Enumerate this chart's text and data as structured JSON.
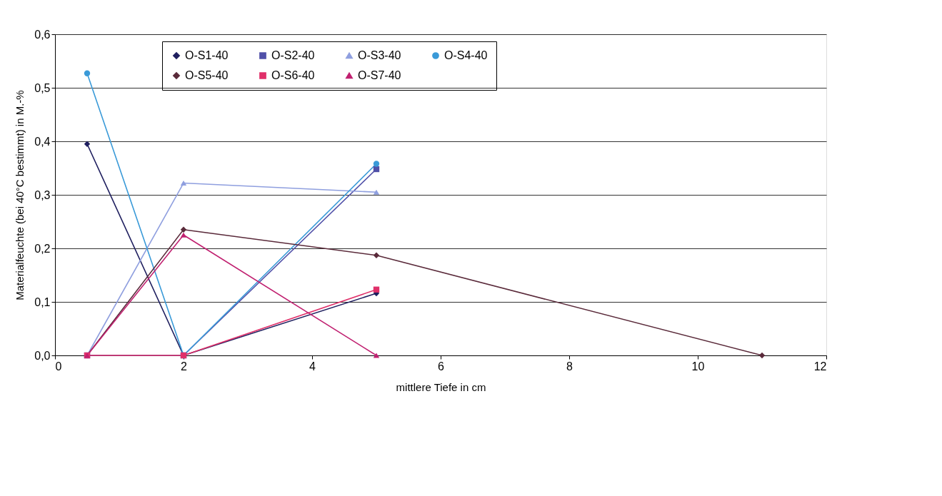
{
  "chart_data": {
    "type": "line",
    "xlabel": "mittlere Tiefe in cm",
    "ylabel": "Materialfeuchte (bei 40°C bestimmt) in M.-%",
    "xlim": [
      0,
      12
    ],
    "xticks": [
      0,
      2,
      4,
      6,
      8,
      10,
      12
    ],
    "ylim": [
      0,
      0.6
    ],
    "yticks": [
      {
        "value": 0,
        "label": "0,0"
      },
      {
        "value": 0.1,
        "label": "0,1"
      },
      {
        "value": 0.2,
        "label": "0,2"
      },
      {
        "value": 0.3,
        "label": "0,3"
      },
      {
        "value": 0.4,
        "label": "0,4"
      },
      {
        "value": 0.5,
        "label": "0,5"
      },
      {
        "value": 0.6,
        "label": "0,6"
      }
    ],
    "grid": "y",
    "legend": "top",
    "x": [
      0.5,
      2,
      5
    ],
    "series": [
      {
        "name": "O-S1-40",
        "color": "#1f1f5f",
        "marker": "diamond",
        "values": [
          0.395,
          0,
          0.116
        ]
      },
      {
        "name": "O-S2-40",
        "color": "#5050a8",
        "marker": "square",
        "values": [
          0,
          0,
          0.348
        ]
      },
      {
        "name": "O-S3-40",
        "color": "#8f9fdf",
        "marker": "triangle",
        "values": [
          0,
          0.322,
          0.305
        ]
      },
      {
        "name": "O-S4-40",
        "color": "#3a9ad8",
        "marker": "circle",
        "values": [
          0.527,
          0,
          0.358
        ]
      },
      {
        "name": "O-S5-40",
        "color": "#5a2a3a",
        "marker": "diamond",
        "x": [
          0.5,
          2,
          5,
          11
        ],
        "values": [
          0,
          0.235,
          0.187,
          0
        ]
      },
      {
        "name": "O-S6-40",
        "color": "#e0306a",
        "marker": "square",
        "values": [
          0,
          0,
          0.123
        ]
      },
      {
        "name": "O-S7-40",
        "color": "#c02070",
        "marker": "triangle",
        "values": [
          0,
          0.225,
          0
        ]
      }
    ]
  }
}
